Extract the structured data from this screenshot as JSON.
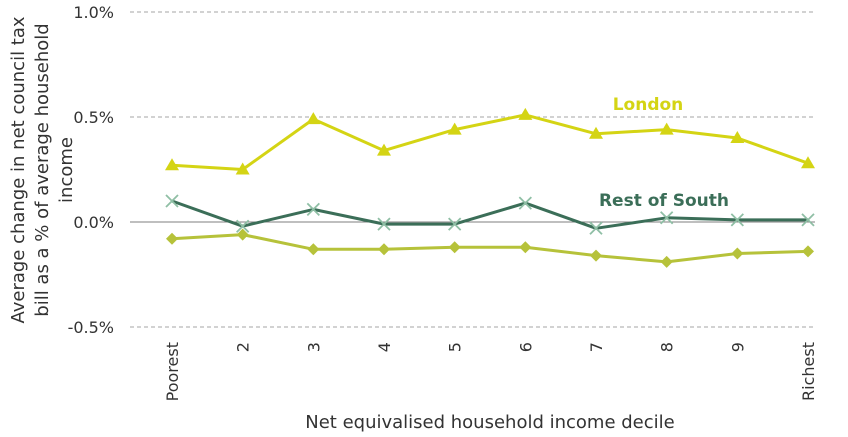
{
  "chart_data": {
    "type": "line",
    "categories": [
      "Poorest",
      "2",
      "3",
      "4",
      "5",
      "6",
      "7",
      "8",
      "9",
      "Richest"
    ],
    "xlabel": "Net equivalised household income decile",
    "ylabel_lines": [
      "Average change in net council tax",
      "bill as a % of average household",
      "income"
    ],
    "ylim": [
      -0.5,
      1.0
    ],
    "yticks": [
      -0.5,
      0.0,
      0.5,
      1.0
    ],
    "ytick_labels": [
      "-0.5%",
      "0.0%",
      "0.5%",
      "1.0%"
    ],
    "grid": "horizontal dashed",
    "series": [
      {
        "name": "London",
        "marker": "triangle",
        "color": "#d4d414",
        "values": [
          0.27,
          0.25,
          0.49,
          0.34,
          0.44,
          0.51,
          0.42,
          0.44,
          0.4,
          0.28
        ]
      },
      {
        "name": "Rest of South",
        "marker": "x",
        "color": "#3b6e58",
        "values": [
          0.1,
          -0.02,
          0.06,
          -0.01,
          -0.01,
          0.09,
          -0.03,
          0.02,
          0.01,
          0.01
        ]
      },
      {
        "name": "",
        "marker": "diamond",
        "color": "#b6c23a",
        "values": [
          -0.08,
          -0.06,
          -0.13,
          -0.13,
          -0.12,
          -0.12,
          -0.16,
          -0.19,
          -0.15,
          -0.14
        ]
      }
    ]
  }
}
